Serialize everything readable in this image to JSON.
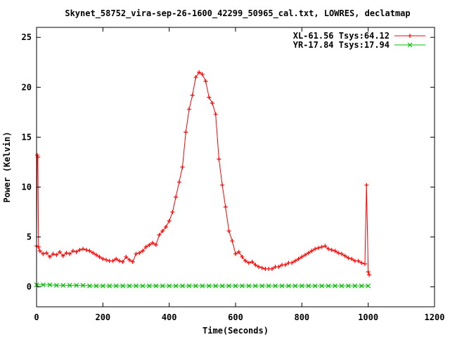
{
  "chart_data": {
    "type": "line",
    "title": "Skynet_58752_vira-sep-26-1600_42299_50965_cal.txt, LOWRES, declatmap",
    "xlabel": "Time(Seconds)",
    "ylabel": "Power (Kelvin)",
    "xlim": [
      0,
      1200
    ],
    "ylim": [
      -2,
      26
    ],
    "xticks": [
      0,
      200,
      400,
      600,
      800,
      1000,
      1200
    ],
    "yticks": [
      0,
      5,
      10,
      15,
      20,
      25
    ],
    "grid": false,
    "legend_position": "top-right",
    "series": [
      {
        "name": "XL-61.56 Tsys:64.12",
        "color": "#ff0000",
        "marker": "plus",
        "x": [
          0,
          2,
          4,
          6,
          10,
          20,
          30,
          40,
          50,
          60,
          70,
          80,
          90,
          100,
          110,
          120,
          130,
          140,
          150,
          160,
          170,
          180,
          190,
          200,
          210,
          220,
          230,
          240,
          250,
          260,
          270,
          280,
          290,
          300,
          310,
          320,
          330,
          340,
          350,
          360,
          370,
          380,
          390,
          400,
          410,
          420,
          430,
          440,
          450,
          460,
          470,
          480,
          490,
          500,
          510,
          520,
          530,
          540,
          550,
          560,
          570,
          580,
          590,
          600,
          610,
          620,
          630,
          640,
          650,
          660,
          670,
          680,
          690,
          700,
          710,
          720,
          730,
          740,
          750,
          760,
          770,
          780,
          790,
          800,
          810,
          820,
          830,
          840,
          850,
          860,
          870,
          880,
          890,
          900,
          910,
          920,
          930,
          940,
          950,
          960,
          970,
          980,
          990,
          995,
          1000,
          1003
        ],
        "y": [
          4.1,
          13.2,
          13.0,
          4.0,
          3.6,
          3.3,
          3.4,
          3.0,
          3.3,
          3.2,
          3.5,
          3.1,
          3.4,
          3.3,
          3.6,
          3.5,
          3.7,
          3.8,
          3.7,
          3.6,
          3.4,
          3.2,
          3.0,
          2.8,
          2.7,
          2.6,
          2.6,
          2.8,
          2.6,
          2.5,
          3.0,
          2.7,
          2.5,
          3.3,
          3.4,
          3.6,
          4.0,
          4.2,
          4.4,
          4.2,
          5.2,
          5.6,
          6.0,
          6.6,
          7.5,
          9.0,
          10.5,
          12.0,
          15.5,
          17.8,
          19.2,
          21.0,
          21.5,
          21.3,
          20.6,
          19.0,
          18.4,
          17.3,
          12.8,
          10.2,
          8.0,
          5.6,
          4.6,
          3.3,
          3.5,
          3.0,
          2.6,
          2.4,
          2.5,
          2.2,
          2.0,
          1.9,
          1.8,
          1.8,
          1.8,
          2.0,
          2.0,
          2.2,
          2.2,
          2.4,
          2.4,
          2.6,
          2.8,
          3.0,
          3.2,
          3.4,
          3.6,
          3.8,
          3.9,
          4.0,
          4.1,
          3.8,
          3.7,
          3.6,
          3.4,
          3.3,
          3.1,
          2.9,
          2.8,
          2.6,
          2.6,
          2.4,
          2.3,
          10.2,
          1.5,
          1.2
        ]
      },
      {
        "name": "YR-17.84 Tsys:17.94",
        "color": "#00c000",
        "marker": "cross",
        "x": [
          0,
          20,
          40,
          60,
          80,
          100,
          120,
          140,
          160,
          180,
          200,
          220,
          240,
          260,
          280,
          300,
          320,
          340,
          360,
          380,
          400,
          420,
          440,
          460,
          480,
          500,
          520,
          540,
          560,
          580,
          600,
          620,
          640,
          660,
          680,
          700,
          720,
          740,
          760,
          780,
          800,
          820,
          840,
          860,
          880,
          900,
          920,
          940,
          960,
          980,
          1000
        ],
        "y": [
          0.2,
          0.2,
          0.2,
          0.15,
          0.15,
          0.15,
          0.15,
          0.15,
          0.1,
          0.1,
          0.1,
          0.1,
          0.1,
          0.1,
          0.1,
          0.1,
          0.1,
          0.1,
          0.1,
          0.1,
          0.1,
          0.1,
          0.1,
          0.1,
          0.1,
          0.1,
          0.1,
          0.1,
          0.1,
          0.1,
          0.1,
          0.1,
          0.1,
          0.1,
          0.1,
          0.1,
          0.1,
          0.1,
          0.1,
          0.1,
          0.1,
          0.1,
          0.1,
          0.1,
          0.1,
          0.1,
          0.1,
          0.1,
          0.1,
          0.1,
          0.1
        ]
      }
    ]
  }
}
